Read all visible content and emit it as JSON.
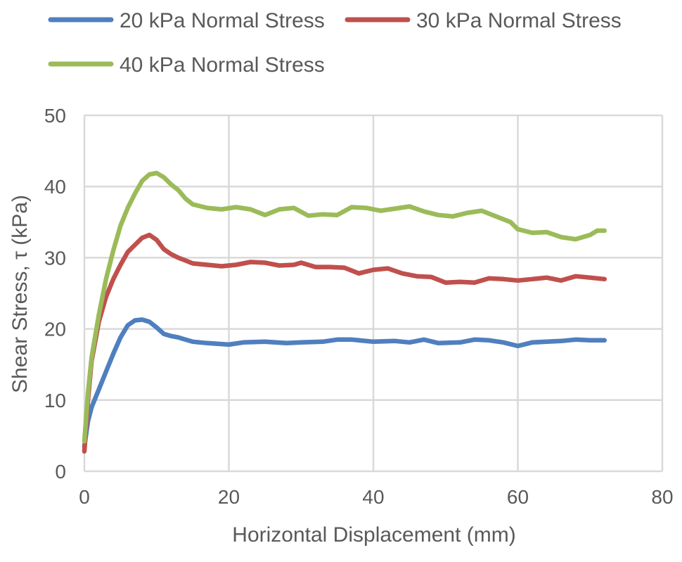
{
  "chart_data": {
    "type": "line",
    "title": "",
    "xlabel": "Horizontal Displacement (mm)",
    "ylabel": "Shear Stress, τ (kPa)",
    "xlim": [
      0,
      80
    ],
    "ylim": [
      0,
      50
    ],
    "xticks": [
      0,
      20,
      40,
      60,
      80
    ],
    "yticks": [
      0,
      10,
      20,
      30,
      40,
      50
    ],
    "grid": true,
    "legend_position": "top",
    "series": [
      {
        "name": "20 kPa Normal Stress",
        "color": "#4F7FBF",
        "points": [
          [
            0,
            3.5
          ],
          [
            0.5,
            7.0
          ],
          [
            1,
            9.0
          ],
          [
            2,
            11.5
          ],
          [
            3,
            14.0
          ],
          [
            4,
            16.5
          ],
          [
            5,
            18.8
          ],
          [
            6,
            20.5
          ],
          [
            7,
            21.2
          ],
          [
            8,
            21.3
          ],
          [
            9,
            21.0
          ],
          [
            10,
            20.2
          ],
          [
            11,
            19.3
          ],
          [
            12,
            19.0
          ],
          [
            13,
            18.8
          ],
          [
            14,
            18.5
          ],
          [
            15,
            18.2
          ],
          [
            17,
            18.0
          ],
          [
            20,
            17.8
          ],
          [
            22,
            18.1
          ],
          [
            25,
            18.2
          ],
          [
            28,
            18.0
          ],
          [
            30,
            18.1
          ],
          [
            33,
            18.2
          ],
          [
            35,
            18.5
          ],
          [
            37,
            18.5
          ],
          [
            40,
            18.2
          ],
          [
            43,
            18.3
          ],
          [
            45,
            18.1
          ],
          [
            47,
            18.5
          ],
          [
            49,
            18.0
          ],
          [
            52,
            18.1
          ],
          [
            54,
            18.5
          ],
          [
            56,
            18.4
          ],
          [
            58,
            18.1
          ],
          [
            60,
            17.6
          ],
          [
            62,
            18.1
          ],
          [
            64,
            18.2
          ],
          [
            66,
            18.3
          ],
          [
            68,
            18.5
          ],
          [
            70,
            18.4
          ],
          [
            72,
            18.4
          ]
        ]
      },
      {
        "name": "30 kPa Normal Stress",
        "color": "#C0504D",
        "points": [
          [
            0,
            2.8
          ],
          [
            0.5,
            10.0
          ],
          [
            1,
            15.5
          ],
          [
            2,
            21.0
          ],
          [
            3,
            24.5
          ],
          [
            4,
            27.0
          ],
          [
            5,
            29.0
          ],
          [
            6,
            30.8
          ],
          [
            7,
            31.8
          ],
          [
            8,
            32.8
          ],
          [
            9,
            33.2
          ],
          [
            10,
            32.5
          ],
          [
            11,
            31.2
          ],
          [
            12,
            30.5
          ],
          [
            13,
            30.0
          ],
          [
            14,
            29.6
          ],
          [
            15,
            29.2
          ],
          [
            17,
            29.0
          ],
          [
            19,
            28.8
          ],
          [
            21,
            29.0
          ],
          [
            23,
            29.4
          ],
          [
            25,
            29.3
          ],
          [
            27,
            28.9
          ],
          [
            29,
            29.0
          ],
          [
            30,
            29.3
          ],
          [
            32,
            28.7
          ],
          [
            34,
            28.7
          ],
          [
            36,
            28.6
          ],
          [
            38,
            27.8
          ],
          [
            40,
            28.3
          ],
          [
            42,
            28.5
          ],
          [
            44,
            27.8
          ],
          [
            46,
            27.4
          ],
          [
            48,
            27.3
          ],
          [
            50,
            26.5
          ],
          [
            52,
            26.6
          ],
          [
            54,
            26.5
          ],
          [
            56,
            27.1
          ],
          [
            58,
            27.0
          ],
          [
            60,
            26.8
          ],
          [
            62,
            27.0
          ],
          [
            64,
            27.2
          ],
          [
            66,
            26.8
          ],
          [
            68,
            27.4
          ],
          [
            70,
            27.2
          ],
          [
            72,
            27.0
          ]
        ]
      },
      {
        "name": "40 kPa Normal Stress",
        "color": "#9BBB59",
        "points": [
          [
            0,
            4.2
          ],
          [
            0.5,
            11.0
          ],
          [
            1,
            16.0
          ],
          [
            2,
            22.0
          ],
          [
            3,
            27.0
          ],
          [
            4,
            31.0
          ],
          [
            5,
            34.5
          ],
          [
            6,
            37.0
          ],
          [
            7,
            39.0
          ],
          [
            8,
            40.8
          ],
          [
            9,
            41.7
          ],
          [
            10,
            41.9
          ],
          [
            11,
            41.3
          ],
          [
            12,
            40.3
          ],
          [
            13,
            39.5
          ],
          [
            14,
            38.3
          ],
          [
            15,
            37.5
          ],
          [
            17,
            37.0
          ],
          [
            19,
            36.8
          ],
          [
            21,
            37.1
          ],
          [
            23,
            36.8
          ],
          [
            25,
            36.0
          ],
          [
            27,
            36.8
          ],
          [
            29,
            37.0
          ],
          [
            31,
            35.9
          ],
          [
            33,
            36.1
          ],
          [
            35,
            36.0
          ],
          [
            37,
            37.1
          ],
          [
            39,
            37.0
          ],
          [
            41,
            36.6
          ],
          [
            43,
            36.9
          ],
          [
            45,
            37.2
          ],
          [
            47,
            36.5
          ],
          [
            49,
            36.0
          ],
          [
            51,
            35.8
          ],
          [
            53,
            36.3
          ],
          [
            55,
            36.6
          ],
          [
            57,
            35.8
          ],
          [
            59,
            35.0
          ],
          [
            60,
            34.0
          ],
          [
            62,
            33.5
          ],
          [
            64,
            33.6
          ],
          [
            66,
            32.9
          ],
          [
            68,
            32.6
          ],
          [
            70,
            33.2
          ],
          [
            71,
            33.8
          ],
          [
            72,
            33.8
          ]
        ]
      }
    ]
  }
}
